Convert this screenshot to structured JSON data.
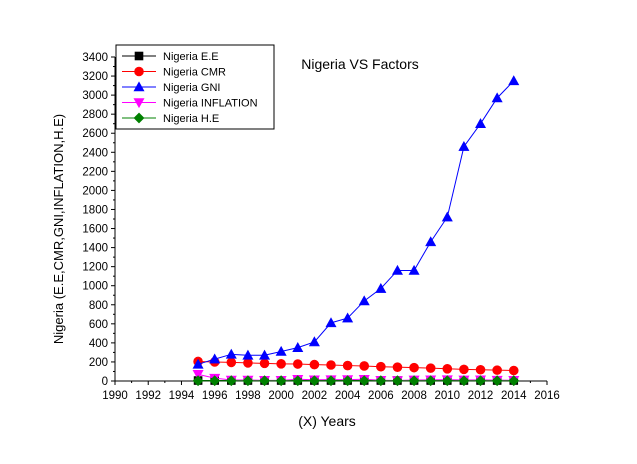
{
  "chart_data": {
    "type": "line",
    "title": "Nigeria VS Factors",
    "xlabel": "(X) Years",
    "ylabel": "Nigeria (E.E,CMR,GNI,INFLATION,H.E)",
    "xlim": [
      1990,
      2016
    ],
    "ylim": [
      0,
      3400
    ],
    "x_ticks": [
      "1990",
      "1992",
      "1994",
      "1996",
      "1998",
      "2000",
      "2002",
      "2004",
      "2006",
      "2008",
      "2010",
      "2012",
      "2014",
      "2016"
    ],
    "y_ticks": [
      "0",
      "200",
      "400",
      "600",
      "800",
      "1000",
      "1200",
      "1400",
      "1600",
      "1800",
      "2000",
      "2200",
      "2400",
      "2600",
      "2800",
      "3000",
      "3200",
      "3400"
    ],
    "legend_position": "top-left",
    "x": [
      1995,
      1996,
      1997,
      1998,
      1999,
      2000,
      2001,
      2002,
      2003,
      2004,
      2005,
      2006,
      2007,
      2008,
      2009,
      2010,
      2011,
      2012,
      2013,
      2014
    ],
    "series": [
      {
        "name": "Nigeria E.E",
        "marker": "square",
        "color": "#000000",
        "values": [
          5,
          5,
          5,
          5,
          5,
          5,
          5,
          5,
          5,
          5,
          5,
          5,
          5,
          5,
          5,
          5,
          5,
          5,
          5,
          5
        ]
      },
      {
        "name": "Nigeria CMR",
        "marker": "circle",
        "color": "#ff0000",
        "values": [
          205,
          200,
          195,
          190,
          185,
          180,
          178,
          172,
          168,
          162,
          158,
          150,
          145,
          140,
          135,
          128,
          122,
          118,
          114,
          110
        ]
      },
      {
        "name": "Nigeria GNI",
        "marker": "triangle-up",
        "color": "#0000ff",
        "values": [
          175,
          230,
          280,
          270,
          270,
          310,
          350,
          410,
          610,
          660,
          840,
          970,
          1160,
          1160,
          1460,
          1720,
          2460,
          2700,
          2970,
          3150
        ]
      },
      {
        "name": "Nigeria INFLATION",
        "marker": "triangle-down",
        "color": "#ff00ff",
        "values": [
          70,
          30,
          10,
          10,
          7,
          7,
          18,
          13,
          14,
          15,
          18,
          8,
          5,
          11,
          12,
          14,
          11,
          12,
          9,
          8
        ]
      },
      {
        "name": "Nigeria H.E",
        "marker": "diamond",
        "color": "#008000",
        "values": [
          3,
          3,
          3,
          3,
          3,
          3,
          3,
          3,
          3,
          3,
          3,
          3,
          3,
          3,
          3,
          3,
          3,
          3,
          3,
          3
        ]
      }
    ]
  }
}
